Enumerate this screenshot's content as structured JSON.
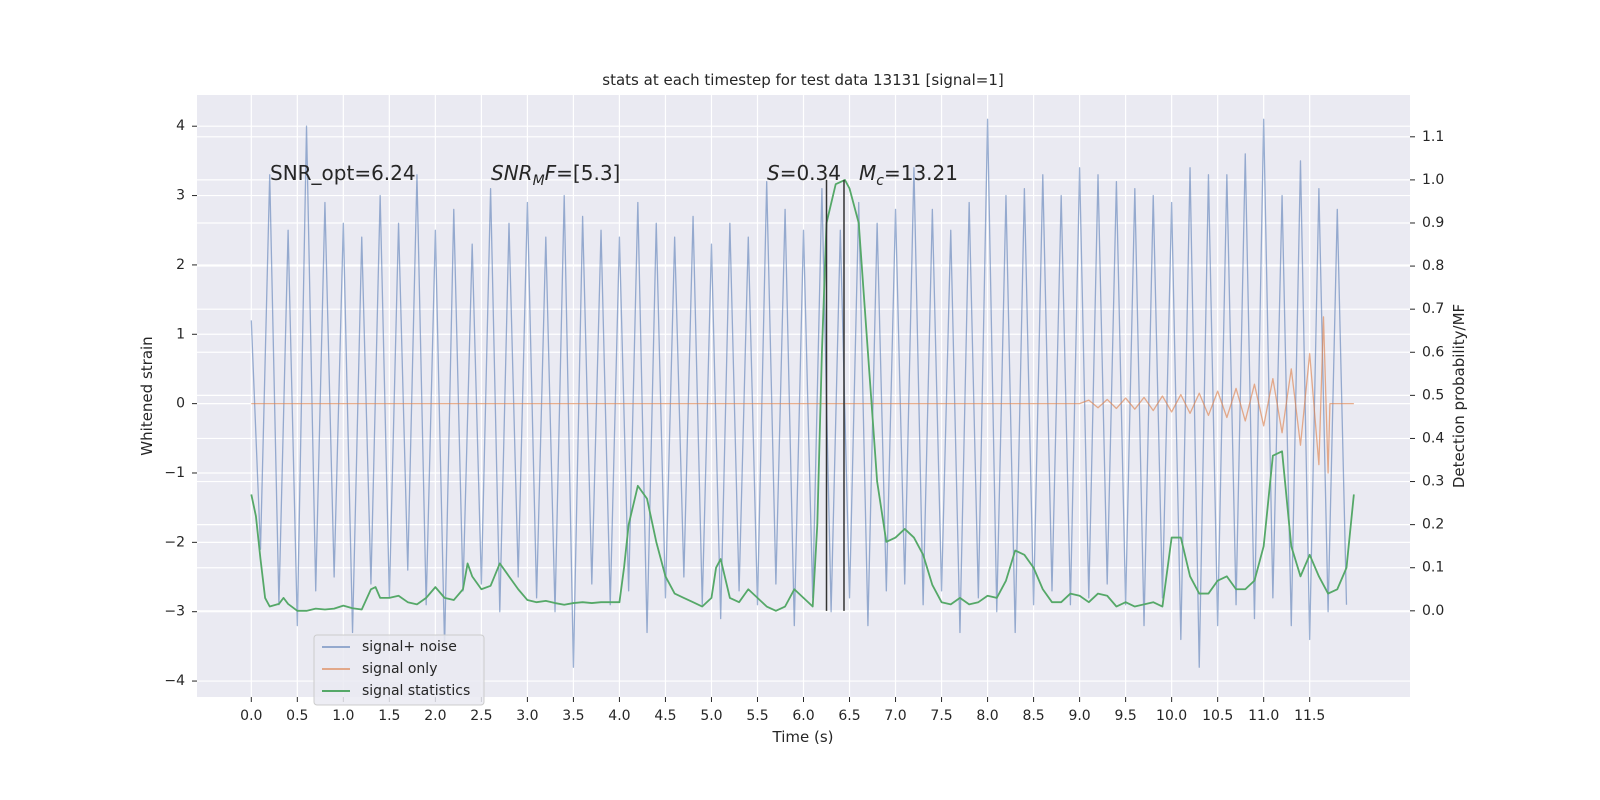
{
  "chart_data": {
    "type": "line",
    "title": "stats at each timestep for test data 13131 [signal=1]",
    "xlabel": "Time (s)",
    "ylabel": "Whitened strain",
    "y2label": "Detection probability/MF",
    "xlim": [
      -0.59,
      12.59
    ],
    "ylim": [
      -4.23,
      4.45
    ],
    "y2lim": [
      -0.2,
      1.197
    ],
    "grid": true,
    "legend": "lower left",
    "xticks": [
      {
        "value": 0,
        "label": "0.0"
      },
      0.5,
      {
        "value": 1,
        "label": "1.0"
      },
      1.5,
      {
        "value": 2,
        "label": "2.0"
      },
      2.5,
      {
        "value": 3,
        "label": "3.0"
      },
      3.5,
      {
        "value": 4,
        "label": "4.0"
      },
      4.5,
      {
        "value": 5,
        "label": "5.0"
      },
      5.5,
      {
        "value": 6,
        "label": "6.0"
      },
      6.5,
      {
        "value": 7,
        "label": "7.0"
      },
      7.5,
      {
        "value": 8,
        "label": "8.0"
      },
      8.5,
      {
        "value": 9,
        "label": "9.0"
      },
      9.5,
      {
        "value": 10,
        "label": "10.0"
      },
      10.5,
      {
        "value": 11,
        "label": "11.0"
      },
      11.5
    ],
    "yticks": [
      {
        "value": -4,
        "label": "−4"
      },
      {
        "value": -3,
        "label": "−3"
      },
      {
        "value": -2,
        "label": "−2"
      },
      {
        "value": -1,
        "label": "−1"
      },
      0,
      1,
      2,
      3,
      4
    ],
    "y2ticks": [
      {
        "value": 0,
        "label": "0.0"
      },
      0.1,
      0.2,
      0.3,
      0.4,
      0.5,
      0.6,
      0.7,
      0.8,
      0.9,
      {
        "value": 1,
        "label": "1.0"
      },
      1.1
    ],
    "annotations": [
      [
        {
          "text": "SNR_opt=6.24"
        }
      ],
      [
        {
          "text": "SNR",
          "italic": true
        },
        {
          "text": "M",
          "italic": true,
          "sub": true
        },
        {
          "text": "F",
          "italic": true
        },
        {
          "text": "=[5.3]"
        }
      ],
      [
        {
          "text": "S",
          "italic": true
        },
        {
          "text": "=0.34"
        }
      ],
      [
        {
          "text": "M",
          "italic": true
        },
        {
          "text": "c",
          "italic": true,
          "sub": true
        },
        {
          "text": "=13.21"
        }
      ]
    ],
    "vlines": {
      "x": [
        6.25,
        6.44
      ],
      "y2range": [
        0,
        1
      ],
      "color": "#333333"
    },
    "series": [
      {
        "name": "signal+ noise",
        "color": "#4c72b0",
        "alpha": 0.55,
        "x": [
          0,
          0.1,
          0.2,
          0.3,
          0.4,
          0.5,
          0.6,
          0.7,
          0.8,
          0.9,
          1,
          1.1,
          1.2,
          1.3,
          1.4,
          1.5,
          1.6,
          1.7,
          1.8,
          1.9,
          2,
          2.1,
          2.2,
          2.3,
          2.4,
          2.5,
          2.6,
          2.7,
          2.8,
          2.9,
          3,
          3.1,
          3.2,
          3.3,
          3.4,
          3.5,
          3.6,
          3.7,
          3.8,
          3.9,
          4,
          4.1,
          4.2,
          4.3,
          4.4,
          4.5,
          4.6,
          4.7,
          4.8,
          4.9,
          5,
          5.1,
          5.2,
          5.3,
          5.4,
          5.5,
          5.6,
          5.7,
          5.8,
          5.9,
          6,
          6.1,
          6.2,
          6.3,
          6.4,
          6.5,
          6.6,
          6.7,
          6.8,
          6.9,
          7,
          7.1,
          7.2,
          7.3,
          7.4,
          7.5,
          7.6,
          7.7,
          7.8,
          7.9,
          8,
          8.1,
          8.2,
          8.3,
          8.4,
          8.5,
          8.6,
          8.7,
          8.8,
          8.9,
          9,
          9.1,
          9.2,
          9.3,
          9.4,
          9.5,
          9.6,
          9.7,
          9.8,
          9.9,
          10,
          10.1,
          10.2,
          10.3,
          10.4,
          10.5,
          10.6,
          10.7,
          10.8,
          10.9,
          11,
          11.1,
          11.2,
          11.3,
          11.4,
          11.5,
          11.6,
          11.7,
          11.8,
          11.9
        ],
        "values": [
          1.2,
          -2.1,
          3.3,
          -2.9,
          2.5,
          -3.2,
          4.0,
          -2.7,
          2.9,
          -2.5,
          2.6,
          -3.3,
          2.4,
          -2.6,
          3.0,
          -2.8,
          2.6,
          -2.4,
          3.3,
          -2.9,
          2.5,
          -3.5,
          2.8,
          -2.7,
          2.3,
          -2.6,
          3.1,
          -3.0,
          2.6,
          -2.5,
          2.9,
          -2.8,
          2.4,
          -3.0,
          3.0,
          -3.8,
          2.7,
          -2.6,
          2.5,
          -2.9,
          2.4,
          -2.7,
          2.9,
          -3.3,
          2.6,
          -2.8,
          2.4,
          -2.5,
          2.7,
          -2.9,
          2.3,
          -3.1,
          2.6,
          -2.7,
          2.4,
          -2.9,
          3.2,
          -2.6,
          2.8,
          -3.2,
          2.5,
          -2.8,
          3.1,
          -3.0,
          2.5,
          -2.8,
          2.9,
          -3.2,
          2.6,
          -2.7,
          2.8,
          -2.6,
          3.4,
          -2.9,
          2.8,
          -2.7,
          2.5,
          -3.3,
          2.9,
          -2.8,
          4.1,
          -3.0,
          3.0,
          -3.3,
          3.1,
          -2.9,
          3.3,
          -2.7,
          3.0,
          -2.9,
          3.4,
          -2.8,
          3.3,
          -2.6,
          3.2,
          -2.9,
          3.1,
          -3.2,
          3.0,
          -2.8,
          2.9,
          -3.4,
          3.4,
          -3.8,
          3.3,
          -3.2,
          3.3,
          -2.9,
          3.6,
          -3.1,
          4.1,
          -2.8,
          3.0,
          -3.2,
          3.5,
          -3.4,
          3.1,
          -3.0,
          2.8,
          -2.9
        ]
      },
      {
        "name": "signal only",
        "color": "#dd8452",
        "alpha": 0.65,
        "x": [
          0,
          6.0,
          9.0,
          9.1,
          9.2,
          9.3,
          9.4,
          9.5,
          9.6,
          9.7,
          9.8,
          9.9,
          10.0,
          10.1,
          10.2,
          10.3,
          10.4,
          10.5,
          10.6,
          10.7,
          10.8,
          10.9,
          11.0,
          11.1,
          11.2,
          11.3,
          11.4,
          11.5,
          11.6,
          11.65,
          11.7,
          11.72,
          11.98
        ],
        "values": [
          0,
          0,
          0,
          0.05,
          -0.06,
          0.06,
          -0.07,
          0.08,
          -0.08,
          0.09,
          -0.1,
          0.11,
          -0.12,
          0.13,
          -0.14,
          0.15,
          -0.17,
          0.18,
          -0.2,
          0.22,
          -0.25,
          0.28,
          -0.32,
          0.36,
          -0.42,
          0.5,
          -0.6,
          0.72,
          -0.88,
          1.25,
          -1.0,
          0,
          0
        ]
      },
      {
        "name": "signal statistics",
        "color": "#55a868",
        "alpha": 1,
        "axis": "y2",
        "x": [
          0,
          0.05,
          0.1,
          0.15,
          0.2,
          0.3,
          0.35,
          0.4,
          0.5,
          0.6,
          0.7,
          0.8,
          0.9,
          1.0,
          1.1,
          1.2,
          1.3,
          1.35,
          1.4,
          1.5,
          1.6,
          1.7,
          1.8,
          1.9,
          2.0,
          2.1,
          2.2,
          2.3,
          2.35,
          2.4,
          2.5,
          2.6,
          2.7,
          2.8,
          2.9,
          3.0,
          3.1,
          3.2,
          3.3,
          3.4,
          3.5,
          3.6,
          3.7,
          3.8,
          3.9,
          4.0,
          4.05,
          4.1,
          4.2,
          4.3,
          4.4,
          4.5,
          4.6,
          4.7,
          4.8,
          4.9,
          5.0,
          5.05,
          5.1,
          5.2,
          5.3,
          5.4,
          5.5,
          5.6,
          5.7,
          5.8,
          5.9,
          6.0,
          6.1,
          6.15,
          6.2,
          6.25,
          6.35,
          6.45,
          6.5,
          6.6,
          6.7,
          6.8,
          6.9,
          7.0,
          7.1,
          7.2,
          7.3,
          7.4,
          7.5,
          7.6,
          7.7,
          7.8,
          7.9,
          8.0,
          8.1,
          8.2,
          8.3,
          8.4,
          8.5,
          8.6,
          8.7,
          8.8,
          8.9,
          9.0,
          9.1,
          9.2,
          9.3,
          9.4,
          9.5,
          9.6,
          9.7,
          9.8,
          9.9,
          10.0,
          10.1,
          10.2,
          10.3,
          10.4,
          10.5,
          10.6,
          10.7,
          10.8,
          10.9,
          11.0,
          11.1,
          11.2,
          11.3,
          11.4,
          11.5,
          11.6,
          11.7,
          11.8,
          11.9,
          11.98
        ],
        "values": [
          0.27,
          0.22,
          0.12,
          0.03,
          0.01,
          0.016,
          0.03,
          0.016,
          0.0,
          0.0,
          0.005,
          0.003,
          0.005,
          0.012,
          0.006,
          0.003,
          0.05,
          0.055,
          0.03,
          0.03,
          0.035,
          0.02,
          0.015,
          0.03,
          0.055,
          0.03,
          0.025,
          0.05,
          0.11,
          0.08,
          0.05,
          0.058,
          0.11,
          0.08,
          0.05,
          0.025,
          0.02,
          0.023,
          0.018,
          0.014,
          0.018,
          0.02,
          0.018,
          0.02,
          0.02,
          0.02,
          0.1,
          0.2,
          0.29,
          0.26,
          0.16,
          0.08,
          0.04,
          0.03,
          0.02,
          0.01,
          0.03,
          0.1,
          0.12,
          0.03,
          0.02,
          0.05,
          0.03,
          0.01,
          0.0,
          0.01,
          0.05,
          0.03,
          0.01,
          0.2,
          0.6,
          0.9,
          0.99,
          1.0,
          0.98,
          0.9,
          0.6,
          0.3,
          0.16,
          0.17,
          0.19,
          0.17,
          0.13,
          0.06,
          0.02,
          0.015,
          0.03,
          0.015,
          0.02,
          0.035,
          0.03,
          0.07,
          0.14,
          0.13,
          0.1,
          0.05,
          0.02,
          0.02,
          0.04,
          0.035,
          0.02,
          0.04,
          0.035,
          0.01,
          0.02,
          0.01,
          0.015,
          0.02,
          0.01,
          0.17,
          0.17,
          0.08,
          0.04,
          0.04,
          0.07,
          0.08,
          0.05,
          0.05,
          0.07,
          0.15,
          0.36,
          0.37,
          0.15,
          0.08,
          0.13,
          0.08,
          0.04,
          0.05,
          0.1,
          0.27
        ]
      }
    ]
  }
}
